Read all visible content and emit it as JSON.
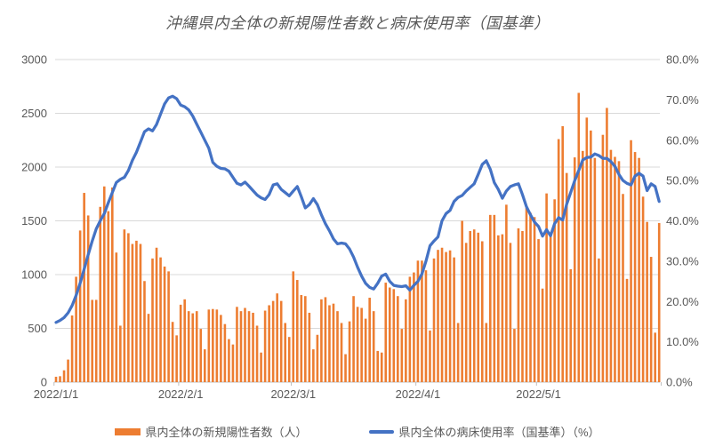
{
  "title": "沖縄県内全体の新規陽性者数と病床使用率（国基準）",
  "legend": {
    "bar_series_label": "県内全体の新規陽性者数（人）",
    "line_series_label": "県内全体の病床使用率（国基準）（%）"
  },
  "colors": {
    "bar": "#ED7D31",
    "line": "#4472C4",
    "gridline": "#D9D9D9",
    "axis_line": "#BFBFBF",
    "label_text": "#595959"
  },
  "chart_data": {
    "type": "combo-bar-line",
    "title": "沖縄県内全体の新規陽性者数と病床使用率（国基準）",
    "start_date": "2022/1/1",
    "num_days": 151,
    "grid": "horizontal",
    "legend_position": "bottom",
    "x_axis": {
      "tick_labels": [
        "2022/1/1",
        "2022/2/1",
        "2022/3/1",
        "2022/4/1",
        "2022/5/1"
      ],
      "tick_day_index": [
        0,
        31,
        59,
        90,
        120
      ]
    },
    "left_axis": {
      "min": 0,
      "max": 3000,
      "step": 500,
      "tick_labels": [
        "0",
        "500",
        "1000",
        "1500",
        "2000",
        "2500",
        "3000"
      ]
    },
    "right_axis": {
      "min": 0,
      "max": 80,
      "step": 10,
      "tick_labels": [
        "0.0%",
        "10.0%",
        "20.0%",
        "30.0%",
        "40.0%",
        "50.0%",
        "60.0%",
        "70.0%",
        "80.0%"
      ]
    },
    "series": [
      {
        "name": "県内全体の新規陽性者数（人）",
        "type": "bar",
        "axis": "left",
        "color": "#ED7D31",
        "values": [
          50,
          55,
          110,
          210,
          620,
          980,
          1410,
          1760,
          1550,
          765,
          765,
          1630,
          1820,
          1590,
          1810,
          1205,
          525,
          1420,
          1385,
          1285,
          1315,
          1285,
          940,
          635,
          1150,
          1250,
          1160,
          1075,
          1030,
          560,
          435,
          720,
          770,
          660,
          640,
          660,
          495,
          305,
          675,
          680,
          675,
          625,
          540,
          400,
          350,
          700,
          660,
          690,
          660,
          645,
          525,
          275,
          665,
          715,
          755,
          825,
          755,
          550,
          420,
          1030,
          950,
          810,
          800,
          645,
          305,
          440,
          770,
          790,
          715,
          730,
          660,
          550,
          260,
          565,
          800,
          700,
          690,
          590,
          785,
          660,
          290,
          275,
          925,
          880,
          865,
          800,
          495,
          770,
          980,
          1020,
          1130,
          1130,
          1040,
          480,
          1150,
          1230,
          1250,
          1210,
          1225,
          1160,
          550,
          1500,
          1295,
          1405,
          1420,
          1390,
          1310,
          550,
          1555,
          1555,
          1365,
          1375,
          1650,
          1295,
          495,
          1430,
          1405,
          1620,
          1575,
          1535,
          1330,
          870,
          1755,
          1375,
          1700,
          2260,
          2380,
          1945,
          1050,
          2090,
          2690,
          2150,
          2460,
          2340,
          2085,
          1150,
          2300,
          2550,
          2160,
          2095,
          2055,
          1750,
          960,
          2250,
          2140,
          2085,
          1725,
          1490,
          1165,
          460,
          1480
        ]
      },
      {
        "name": "県内全体の病床使用率（国基準）（%）",
        "type": "line",
        "axis": "right",
        "color": "#4472C4",
        "values": [
          14.8,
          15.3,
          16.0,
          17.2,
          19.0,
          21.5,
          24.5,
          28.0,
          31.6,
          35.0,
          38.0,
          40.0,
          41.8,
          44.5,
          47.0,
          49.5,
          50.3,
          50.8,
          52.5,
          55.0,
          57.0,
          59.5,
          62.1,
          62.8,
          62.3,
          63.9,
          66.5,
          69.0,
          70.5,
          70.9,
          70.3,
          68.7,
          68.3,
          67.5,
          66.0,
          64.0,
          62.0,
          60.0,
          58.0,
          54.5,
          53.5,
          53.0,
          52.9,
          52.3,
          50.8,
          49.3,
          48.9,
          49.6,
          48.6,
          47.5,
          46.4,
          45.7,
          45.3,
          46.5,
          48.9,
          49.2,
          47.8,
          47.0,
          46.2,
          47.4,
          48.5,
          46.0,
          43.2,
          44.0,
          45.5,
          44.0,
          41.5,
          39.3,
          37.5,
          35.5,
          34.3,
          34.5,
          34.3,
          33.0,
          31.0,
          28.5,
          26.3,
          24.5,
          23.5,
          23.1,
          24.5,
          26.3,
          26.8,
          25.0,
          24.0,
          23.8,
          23.7,
          23.9,
          22.8,
          24.0,
          25.0,
          26.8,
          30.0,
          33.8,
          35.0,
          36.0,
          40.0,
          41.8,
          42.6,
          44.8,
          45.8,
          46.3,
          47.4,
          48.3,
          49.2,
          51.5,
          54.0,
          54.9,
          52.8,
          49.5,
          47.8,
          45.6,
          47.4,
          48.5,
          48.9,
          49.2,
          46.5,
          43.5,
          41.5,
          39.7,
          38.6,
          36.2,
          37.8,
          36.3,
          39.3,
          40.8,
          40.2,
          44.1,
          47.0,
          50.0,
          52.5,
          55.1,
          55.7,
          55.8,
          56.6,
          56.2,
          55.5,
          55.5,
          54.7,
          53.5,
          51.5,
          50.0,
          49.3,
          48.9,
          51.1,
          51.8,
          51.1,
          47.5,
          49.2,
          48.5,
          44.8
        ]
      }
    ]
  }
}
